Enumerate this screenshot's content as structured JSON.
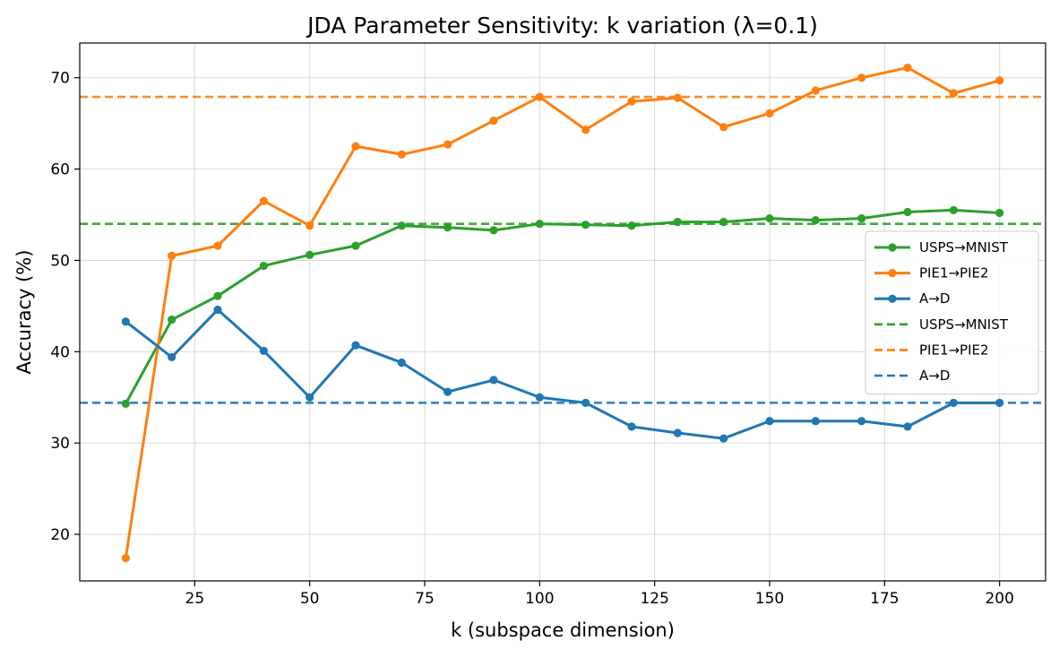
{
  "chart_data": {
    "type": "line",
    "title": "JDA Parameter Sensitivity: k variation (λ=0.1)",
    "xlabel": "k (subspace dimension)",
    "ylabel": "Accuracy (%)",
    "xlim": [
      0,
      210
    ],
    "ylim": [
      14.9,
      73.8
    ],
    "xticks": [
      25,
      50,
      75,
      100,
      125,
      150,
      175,
      200
    ],
    "yticks": [
      20,
      30,
      40,
      50,
      60,
      70
    ],
    "grid": true,
    "legend_position": "center-right",
    "x": [
      10,
      20,
      30,
      40,
      50,
      60,
      70,
      80,
      90,
      100,
      110,
      120,
      130,
      140,
      150,
      160,
      170,
      180,
      190,
      200
    ],
    "series": [
      {
        "name": "USPS→MNIST",
        "color": "#2ca02c",
        "values": [
          34.3,
          43.5,
          46.1,
          49.4,
          50.6,
          51.6,
          53.8,
          53.6,
          53.3,
          54.0,
          53.9,
          53.8,
          54.2,
          54.2,
          54.6,
          54.4,
          54.6,
          55.3,
          55.5,
          55.2
        ]
      },
      {
        "name": "PIE1→PIE2",
        "color": "#ff7f0e",
        "values": [
          17.4,
          50.5,
          51.6,
          56.5,
          53.8,
          62.5,
          61.6,
          62.7,
          65.3,
          67.9,
          64.3,
          67.4,
          67.8,
          64.6,
          66.1,
          68.6,
          70.0,
          71.1,
          68.3,
          69.7
        ]
      },
      {
        "name": "A→D",
        "color": "#1f77b4",
        "values": [
          43.3,
          39.4,
          44.6,
          40.1,
          35.0,
          40.7,
          38.8,
          35.6,
          36.9,
          35.0,
          34.4,
          31.8,
          31.1,
          30.5,
          32.4,
          32.4,
          32.4,
          31.8,
          34.4,
          34.4
        ]
      }
    ],
    "reference_lines": [
      {
        "name": "USPS→MNIST",
        "color": "#2ca02c",
        "value": 54.0
      },
      {
        "name": "PIE1→PIE2",
        "color": "#ff7f0e",
        "value": 67.9
      },
      {
        "name": "A→D",
        "color": "#1f77b4",
        "value": 34.4
      }
    ]
  }
}
